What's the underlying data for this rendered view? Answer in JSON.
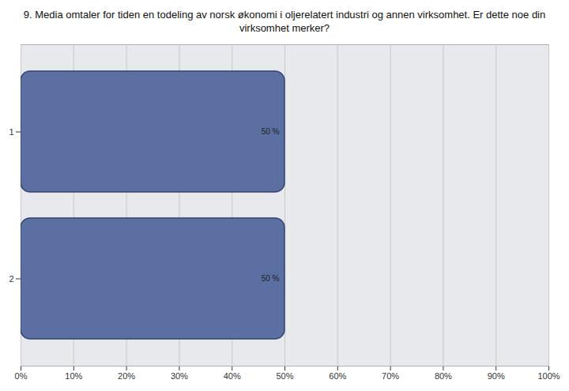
{
  "chart_data": {
    "type": "bar",
    "title": "9. Media omtaler for tiden en todeling av norsk økonomi i oljerelatert industri og annen virksomhet. Er dette noe din virksomhet merker?",
    "categories": [
      "1",
      "2"
    ],
    "values": [
      50,
      50
    ],
    "value_labels": [
      "50 %",
      "50 %"
    ],
    "color": "#5b6fa3",
    "orientation": "horizontal",
    "data_labels": true,
    "xlim": [
      0,
      100
    ],
    "xticks": [
      {
        "value": 0,
        "label": "0%"
      },
      {
        "value": 10,
        "label": "10%"
      },
      {
        "value": 20,
        "label": "20%"
      },
      {
        "value": 30,
        "label": "30%"
      },
      {
        "value": 40,
        "label": "40%"
      },
      {
        "value": 50,
        "label": "50%"
      },
      {
        "value": 60,
        "label": "60%"
      },
      {
        "value": 70,
        "label": "70%"
      },
      {
        "value": 80,
        "label": "80%"
      },
      {
        "value": 90,
        "label": "90%"
      },
      {
        "value": 100,
        "label": "100%"
      }
    ],
    "grid": true
  }
}
